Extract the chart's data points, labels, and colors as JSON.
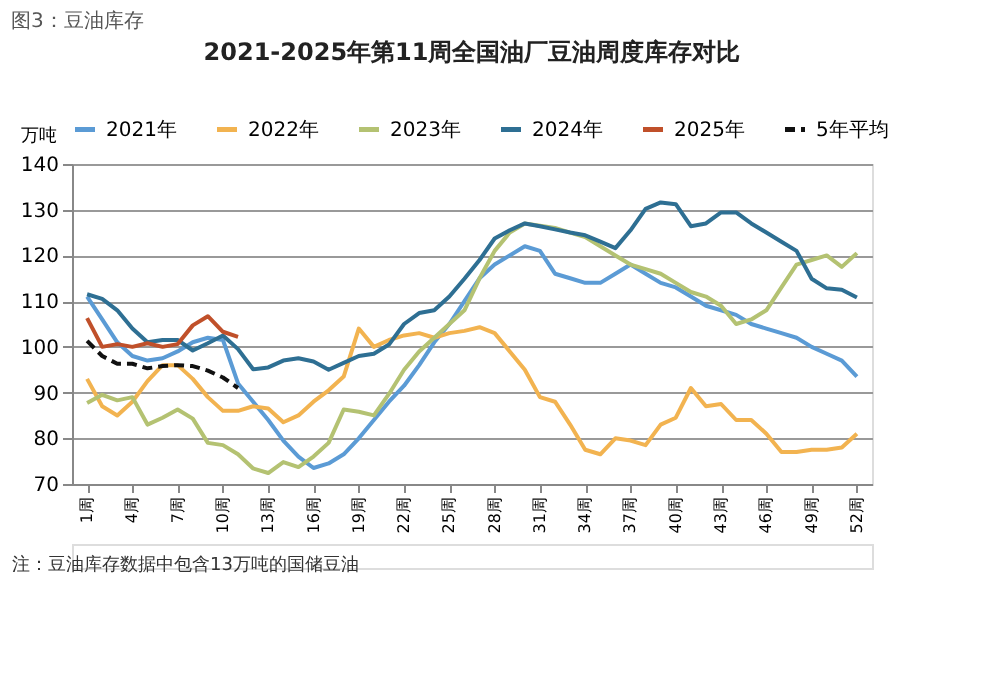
{
  "chart_data": {
    "type": "line",
    "title": "图3：豆油库存",
    "subtitle": "2021-2025年第11周全国油厂豆油周度库存对比",
    "ylabel": "万吨",
    "xlim": [
      0,
      53
    ],
    "xticks": [
      {
        "value": 1,
        "label": "1周"
      },
      {
        "value": 4,
        "label": "4周"
      },
      {
        "value": 7,
        "label": "7周"
      },
      {
        "value": 10,
        "label": "10周"
      },
      {
        "value": 13,
        "label": "13周"
      },
      {
        "value": 16,
        "label": "16周"
      },
      {
        "value": 19,
        "label": "19周"
      },
      {
        "value": 22,
        "label": "22周"
      },
      {
        "value": 25,
        "label": "25周"
      },
      {
        "value": 28,
        "label": "28周"
      },
      {
        "value": 31,
        "label": "31周"
      },
      {
        "value": 34,
        "label": "34周"
      },
      {
        "value": 37,
        "label": "37周"
      },
      {
        "value": 40,
        "label": "40周"
      },
      {
        "value": 43,
        "label": "43周"
      },
      {
        "value": 46,
        "label": "46周"
      },
      {
        "value": 49,
        "label": "49周"
      },
      {
        "value": 52,
        "label": "52周"
      }
    ],
    "ylim": [
      70,
      140
    ],
    "yticks": [
      70,
      80,
      90,
      100,
      110,
      120,
      130,
      140
    ],
    "grid": "y",
    "legend": "top",
    "series": [
      {
        "name": "2021年",
        "color": "#5b9bd5",
        "line_style": "solid",
        "x": [
          1,
          2,
          3,
          4,
          5,
          6,
          7,
          8,
          9,
          10,
          11,
          12,
          13,
          14,
          15,
          16,
          17,
          18,
          19,
          20,
          21,
          22,
          23,
          24,
          25,
          26,
          27,
          28,
          29,
          30,
          31,
          32,
          33,
          34,
          35,
          36,
          37,
          38,
          39,
          40,
          41,
          42,
          43,
          44,
          45,
          46,
          47,
          48,
          49,
          50,
          51,
          52
        ],
        "values": [
          111,
          106,
          101,
          98,
          97,
          97.5,
          99,
          101,
          102,
          101.5,
          92,
          88,
          84,
          79.5,
          76,
          73.5,
          74.5,
          76.5,
          80,
          84,
          88,
          91.5,
          96,
          101,
          105,
          110,
          115,
          118,
          120,
          122,
          121,
          116,
          115,
          114,
          114,
          116,
          118,
          116,
          114,
          113,
          111,
          109,
          108,
          107,
          105,
          104,
          103,
          102,
          100,
          98.5,
          97,
          93.5
        ]
      },
      {
        "name": "2022年",
        "color": "#f2b350",
        "line_style": "solid",
        "x": [
          1,
          2,
          3,
          4,
          5,
          6,
          7,
          8,
          9,
          10,
          11,
          12,
          13,
          14,
          15,
          16,
          17,
          18,
          19,
          20,
          21,
          22,
          23,
          24,
          25,
          26,
          27,
          28,
          29,
          30,
          31,
          32,
          33,
          34,
          35,
          36,
          37,
          38,
          39,
          40,
          41,
          42,
          43,
          44,
          45,
          46,
          47,
          48,
          49,
          50,
          51,
          52
        ],
        "values": [
          93,
          87,
          85,
          88,
          92.5,
          96,
          96,
          93,
          89,
          86,
          86,
          87,
          86.5,
          83.5,
          85,
          88,
          90.5,
          93.5,
          104,
          100,
          101.5,
          102.5,
          103,
          102,
          103,
          103.5,
          104.3,
          103,
          99,
          95,
          89,
          88,
          83,
          77.5,
          76.5,
          80,
          79.5,
          78.5,
          83,
          84.5,
          91,
          87,
          87.5,
          84,
          84,
          81,
          77,
          77,
          77.5,
          77.5,
          78,
          81
        ]
      },
      {
        "name": "2023年",
        "color": "#b4c272",
        "line_style": "solid",
        "x": [
          1,
          2,
          3,
          4,
          5,
          6,
          7,
          8,
          9,
          10,
          11,
          12,
          13,
          14,
          15,
          16,
          17,
          18,
          19,
          20,
          21,
          22,
          23,
          24,
          25,
          26,
          27,
          28,
          29,
          30,
          31,
          32,
          33,
          34,
          35,
          36,
          37,
          38,
          39,
          40,
          41,
          42,
          43,
          44,
          45,
          46,
          47,
          48,
          49,
          50,
          51,
          52
        ],
        "values": [
          87.7,
          89.5,
          88.3,
          89,
          83,
          84.5,
          86.3,
          84.3,
          79,
          78.5,
          76.5,
          73.4,
          72.4,
          74.8,
          73.7,
          76,
          79,
          86.3,
          85.8,
          85,
          89.7,
          95,
          99,
          102,
          105,
          108,
          115,
          121,
          125,
          127,
          126.5,
          126,
          125,
          124,
          122,
          120,
          118,
          117,
          116,
          114,
          112,
          111,
          109,
          105,
          106,
          108,
          113,
          118,
          119,
          120,
          117.5,
          120.5
        ]
      },
      {
        "name": "2024年",
        "color": "#2e6f93",
        "line_style": "solid",
        "x": [
          1,
          2,
          3,
          4,
          5,
          6,
          7,
          8,
          9,
          10,
          11,
          12,
          13,
          14,
          15,
          16,
          17,
          18,
          19,
          20,
          21,
          22,
          23,
          24,
          25,
          26,
          27,
          28,
          29,
          30,
          31,
          32,
          33,
          34,
          35,
          36,
          37,
          38,
          39,
          40,
          41,
          42,
          43,
          44,
          45,
          46,
          47,
          48,
          49,
          50,
          51,
          52
        ],
        "values": [
          111.5,
          110.5,
          108,
          104,
          101,
          101.5,
          101.5,
          99.2,
          100.8,
          102.5,
          99.5,
          95.1,
          95.5,
          97,
          97.5,
          96.8,
          95,
          96.5,
          98,
          98.5,
          100.5,
          105,
          107.4,
          108,
          111,
          114.9,
          119,
          123.7,
          125.5,
          127,
          126.4,
          125.7,
          125,
          124.4,
          123,
          121.6,
          125.5,
          130.2,
          131.6,
          131.2,
          126.4,
          127,
          129.4,
          129.4,
          127,
          125,
          123,
          121,
          114.9,
          112.8,
          112.5,
          110.8
        ]
      },
      {
        "name": "2025年",
        "color": "#c0502a",
        "line_style": "solid",
        "x": [
          1,
          2,
          3,
          4,
          5,
          6,
          7,
          8,
          9,
          10,
          11
        ],
        "values": [
          106.3,
          100,
          100.6,
          100,
          100.8,
          100,
          100.6,
          104.7,
          106.7,
          103.3,
          102.2
        ]
      },
      {
        "name": "5年平均",
        "color": "#111111",
        "line_style": "dashed",
        "x": [
          1,
          2,
          3,
          4,
          5,
          6,
          7,
          8,
          9,
          10,
          11
        ],
        "values": [
          101.3,
          98,
          96.3,
          96.3,
          95.3,
          95.8,
          96,
          95.8,
          94.8,
          93.3,
          91
        ]
      }
    ],
    "annotations": [
      "注：豆油库存数据中包含13万吨的国储豆油"
    ]
  }
}
